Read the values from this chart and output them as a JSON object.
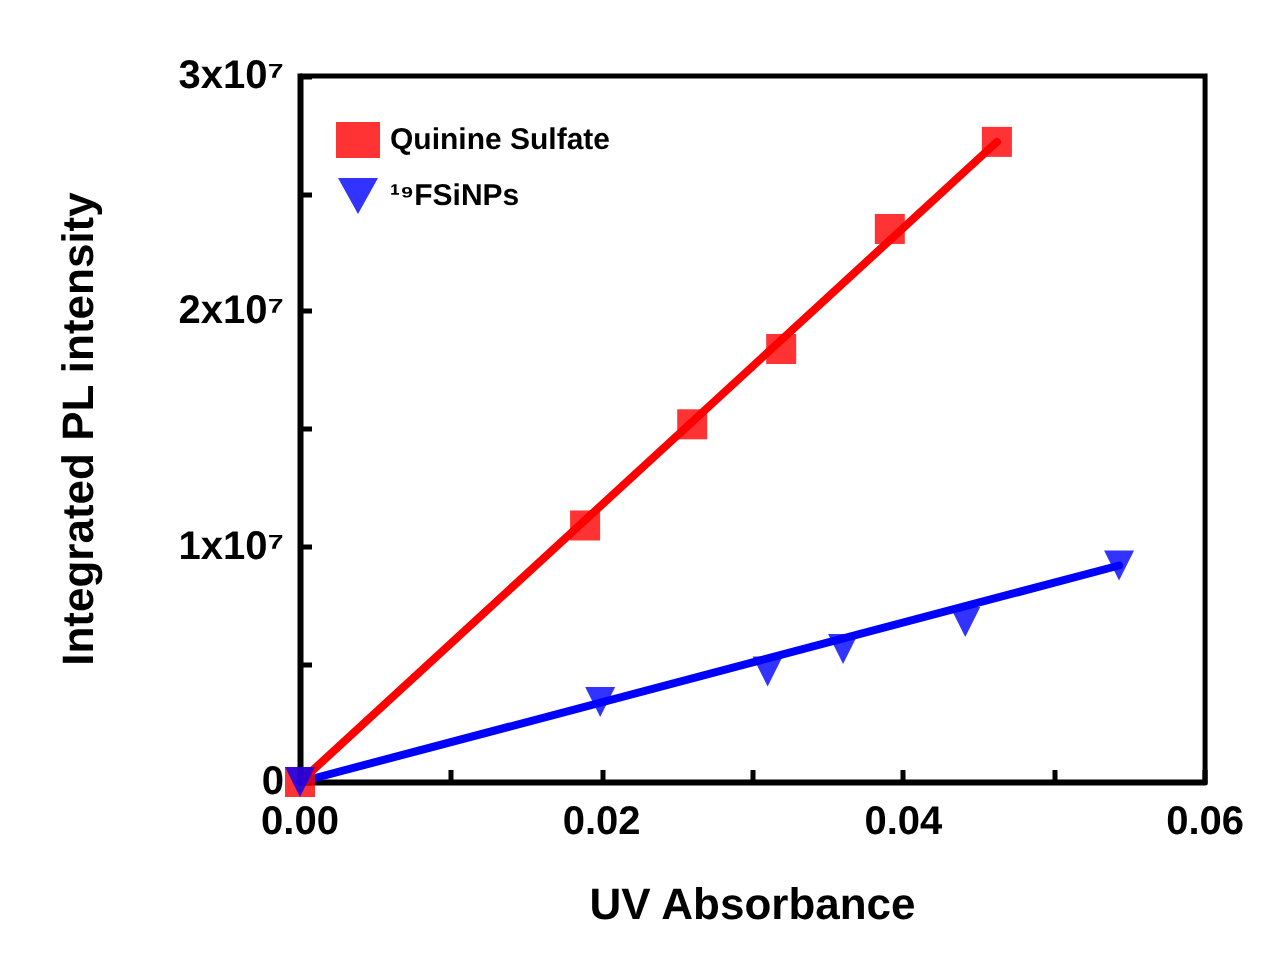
{
  "chart_data": {
    "type": "scatter",
    "xlabel": "UV Absorbance",
    "ylabel": "Integrated PL intensity",
    "xlim": [
      0,
      0.06
    ],
    "ylim": [
      0,
      30000000
    ],
    "xticks": [
      {
        "value": 0,
        "label": "0.00"
      },
      {
        "value": 0.01,
        "label": null
      },
      {
        "value": 0.02,
        "label": "0.02"
      },
      {
        "value": 0.03,
        "label": null
      },
      {
        "value": 0.04,
        "label": "0.04"
      },
      {
        "value": 0.05,
        "label": null
      },
      {
        "value": 0.06,
        "label": "0.06"
      }
    ],
    "yticks": [
      {
        "value": 0,
        "label": "0"
      },
      {
        "value": 5000000,
        "label": null
      },
      {
        "value": 10000000,
        "label": "1x10⁷"
      },
      {
        "value": 15000000,
        "label": null
      },
      {
        "value": 20000000,
        "label": "2x10⁷"
      },
      {
        "value": 25000000,
        "label": null
      },
      {
        "value": 30000000,
        "label": "3x10⁷"
      }
    ],
    "grid": false,
    "legend": "top left",
    "series": [
      {
        "name": "Quinine Sulfate",
        "color": "#ff0000",
        "marker": "square",
        "x": [
          0,
          0.0189,
          0.026,
          0.0319,
          0.0391,
          0.0462
        ],
        "values": [
          0,
          10900000,
          15200000,
          18400000,
          23500000,
          27200000
        ]
      },
      {
        "name": "¹⁹FSiNPs",
        "color": "#0000ff",
        "marker": "triangle",
        "x": [
          0,
          0.0199,
          0.031,
          0.036,
          0.0441,
          0.0543
        ],
        "values": [
          0,
          3400000,
          4700000,
          5650000,
          6800000,
          9200000
        ]
      },
      {
        "type": "line",
        "color": "#ff0000",
        "marker": "none",
        "x": [
          0,
          0.0462
        ],
        "values": [
          0,
          27200000
        ]
      },
      {
        "type": "line",
        "color": "#0000ff",
        "marker": "none",
        "x": [
          0,
          0.0543
        ],
        "values": [
          0,
          9200000
        ]
      }
    ]
  }
}
